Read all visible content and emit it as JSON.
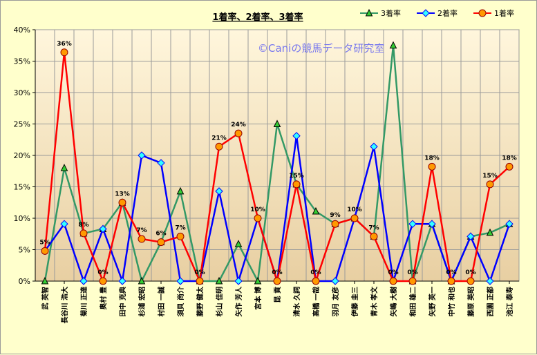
{
  "chart_data": {
    "type": "line",
    "title": "1着率、2着率、3着率",
    "watermark": "©Caniの競馬データ研究室",
    "ylim": [
      0,
      40
    ],
    "yticks": [
      "0%",
      "5%",
      "10%",
      "15%",
      "20%",
      "25%",
      "30%",
      "35%",
      "40%"
    ],
    "grid": true,
    "legend_position": "top-right",
    "categories": [
      "武 英智",
      "長谷川 浩大",
      "菊川 正達",
      "奥村 豊",
      "田中 克典",
      "杉浦 宏昭",
      "村田 一誠",
      "須貝 尚介",
      "藤野 健太",
      "杉山 佳明",
      "矢作 芳人",
      "宮本 博",
      "昆 貢",
      "清水 久詞",
      "高橋 一哉",
      "羽月 友彦",
      "伊藤 圭三",
      "青木 孝文",
      "矢嶋 大樹",
      "和田 雄二",
      "矢野 英一",
      "中竹 和也",
      "藤原 英昭",
      "西園 正都",
      "池江 泰寿"
    ],
    "series": [
      {
        "name": "3着率",
        "color": "#339966",
        "marker": "triangle",
        "marker_fill": "#33cc33",
        "values": [
          0,
          18,
          7.6,
          8.3,
          12.5,
          0,
          6.2,
          14.3,
          0,
          0,
          5.9,
          0,
          25,
          15.4,
          11.1,
          9.1,
          10,
          7.1,
          37.5,
          0,
          9.1,
          0,
          7.1,
          7.7,
          9.1
        ]
      },
      {
        "name": "2着率",
        "color": "#0000ff",
        "marker": "diamond",
        "marker_fill": "#33ffff",
        "values": [
          4.8,
          9.1,
          0,
          8.3,
          0,
          20,
          18.8,
          0,
          0,
          14.3,
          0,
          10,
          0,
          23.1,
          0,
          0,
          10,
          21.4,
          0,
          9.1,
          9.1,
          0,
          7.1,
          0,
          9.1
        ]
      },
      {
        "name": "1着率",
        "color": "#ff0000",
        "marker": "circle",
        "marker_fill": "#ff9900",
        "values": [
          4.8,
          36.4,
          7.6,
          0,
          12.5,
          6.7,
          6.2,
          7.1,
          0,
          21.4,
          23.5,
          10,
          0,
          15.4,
          0,
          9.1,
          10,
          7.1,
          0,
          0,
          18.2,
          0,
          0,
          15.4,
          18.2
        ]
      }
    ],
    "data_labels": [
      "5%",
      "36%",
      "8%",
      "0%",
      "13%",
      "7%",
      "6%",
      "7%",
      "0%",
      "21%",
      "24%",
      "10%",
      "0%",
      "15%",
      "0%",
      "9%",
      "10%",
      "7%",
      "0%",
      "0%",
      "18%",
      "0%",
      "0%",
      "15%",
      "18%"
    ]
  }
}
